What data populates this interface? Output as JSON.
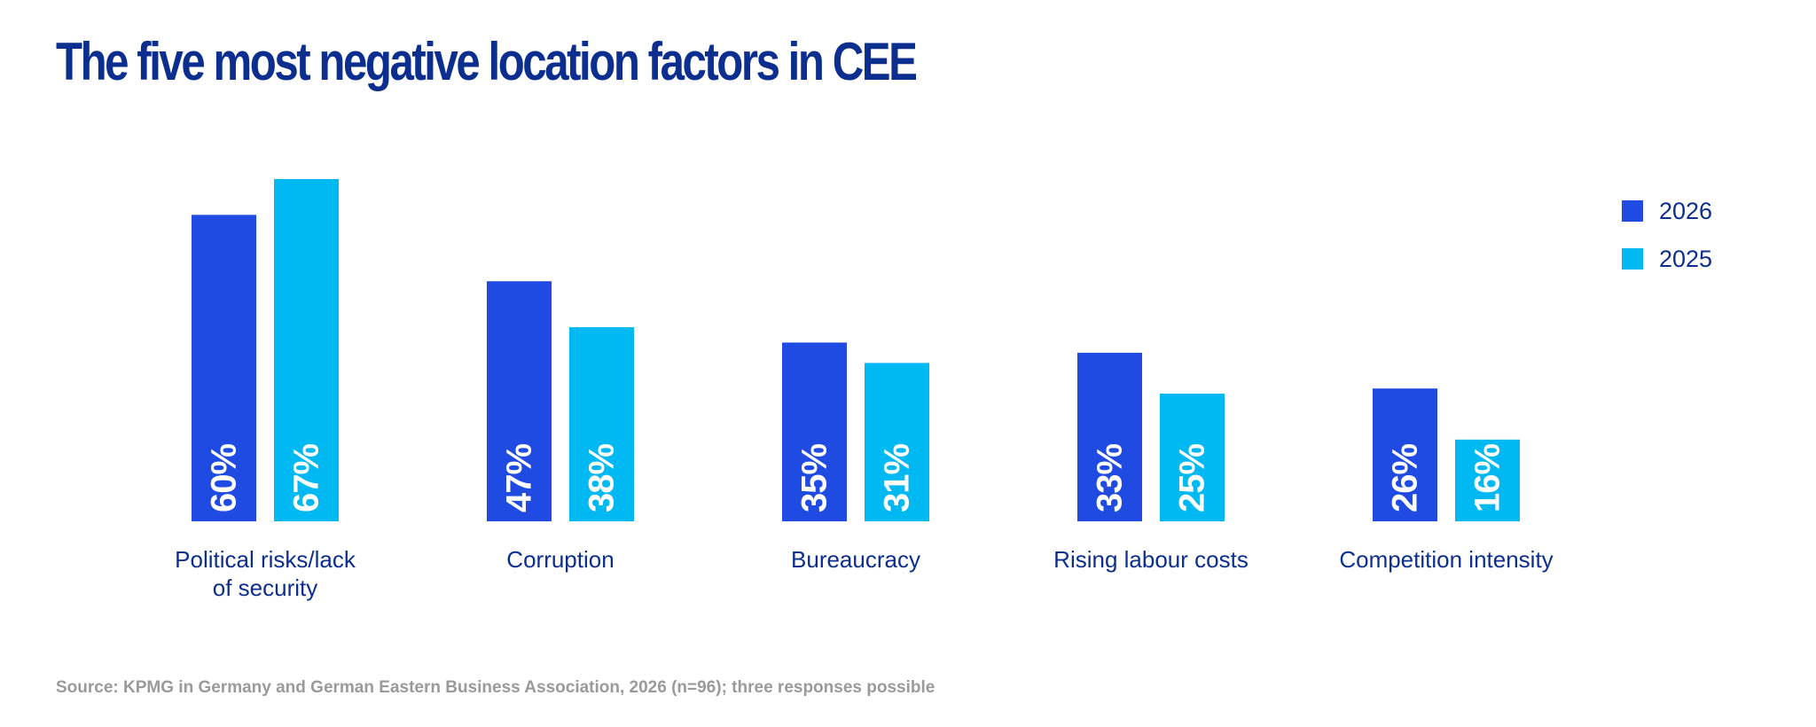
{
  "colors": {
    "title": "#0c2f8f",
    "series_2026": "#1f4be3",
    "series_2025": "#00b8f2",
    "category_label": "#0c2f8f",
    "source": "#9a9a9a",
    "bar_label": "#ffffff"
  },
  "chart_data": {
    "type": "bar",
    "title": "The five most negative location factors in CEE",
    "categories": [
      [
        "Political risks/lack",
        "of security"
      ],
      [
        "Corruption"
      ],
      [
        "Bureaucracy"
      ],
      [
        "Rising labour costs"
      ],
      [
        "Competition intensity"
      ]
    ],
    "series": [
      {
        "name": "2026",
        "values": [
          60,
          47,
          35,
          33,
          26
        ]
      },
      {
        "name": "2025",
        "values": [
          67,
          38,
          31,
          25,
          16
        ]
      }
    ],
    "value_format": "{v}%",
    "ylim": [
      0,
      67
    ],
    "grid": false,
    "legend_position": "top-right",
    "xlabel": "",
    "ylabel": ""
  },
  "source": "Source: KPMG in Germany and German Eastern Business Association, 2026 (n=96); three responses possible"
}
